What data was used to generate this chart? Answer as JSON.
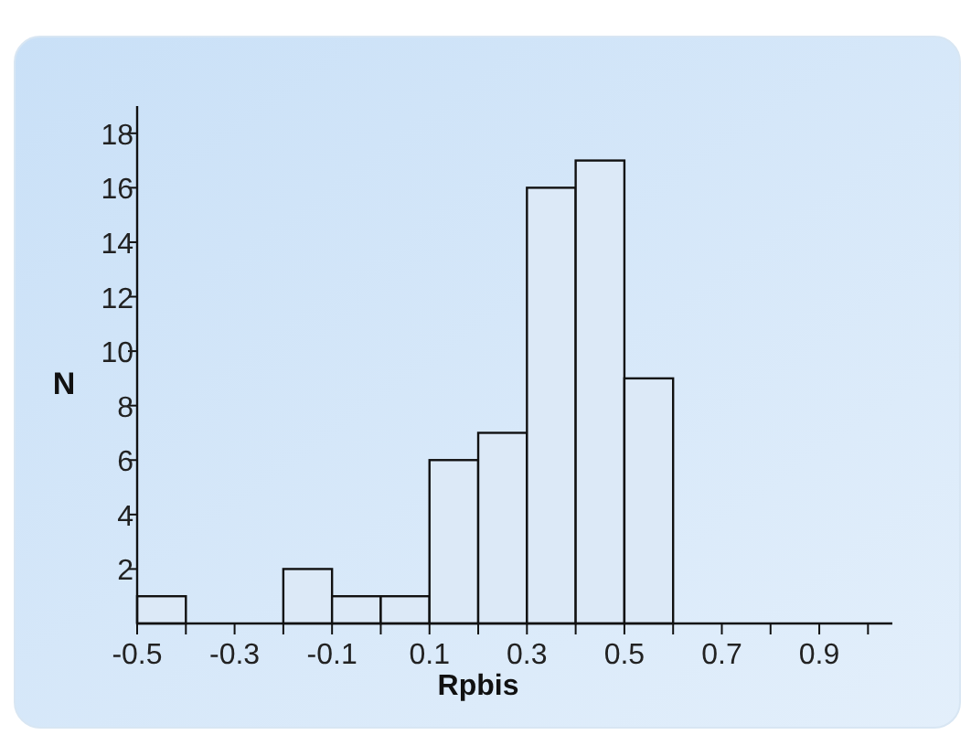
{
  "chart_data": {
    "type": "histogram",
    "xlabel": "Rpbis",
    "ylabel": "N",
    "bins": [
      -0.5,
      -0.4,
      -0.3,
      -0.2,
      -0.1,
      0,
      0.1,
      0.2,
      0.3,
      0.4,
      0.5,
      0.6
    ],
    "values": [
      1,
      0,
      0,
      2,
      1,
      1,
      6,
      7,
      16,
      17,
      9
    ],
    "color": "#dce9f7",
    "xlim": [
      -0.5,
      1.05
    ],
    "xticks": [
      -0.5,
      {
        "value": -0.4,
        "label": null
      },
      -0.3,
      {
        "value": -0.2,
        "label": null
      },
      -0.1,
      {
        "value": 0,
        "label": null
      },
      0.1,
      {
        "value": 0.2,
        "label": null
      },
      0.3,
      {
        "value": 0.4,
        "label": null
      },
      0.5,
      {
        "value": 0.6,
        "label": null
      },
      0.7,
      {
        "value": 0.8,
        "label": null
      },
      0.9,
      {
        "value": 1.0,
        "label": null
      }
    ],
    "ylim": [
      0,
      19
    ],
    "yticks": [
      2,
      4,
      6,
      8,
      10,
      12,
      14,
      16,
      18
    ]
  }
}
